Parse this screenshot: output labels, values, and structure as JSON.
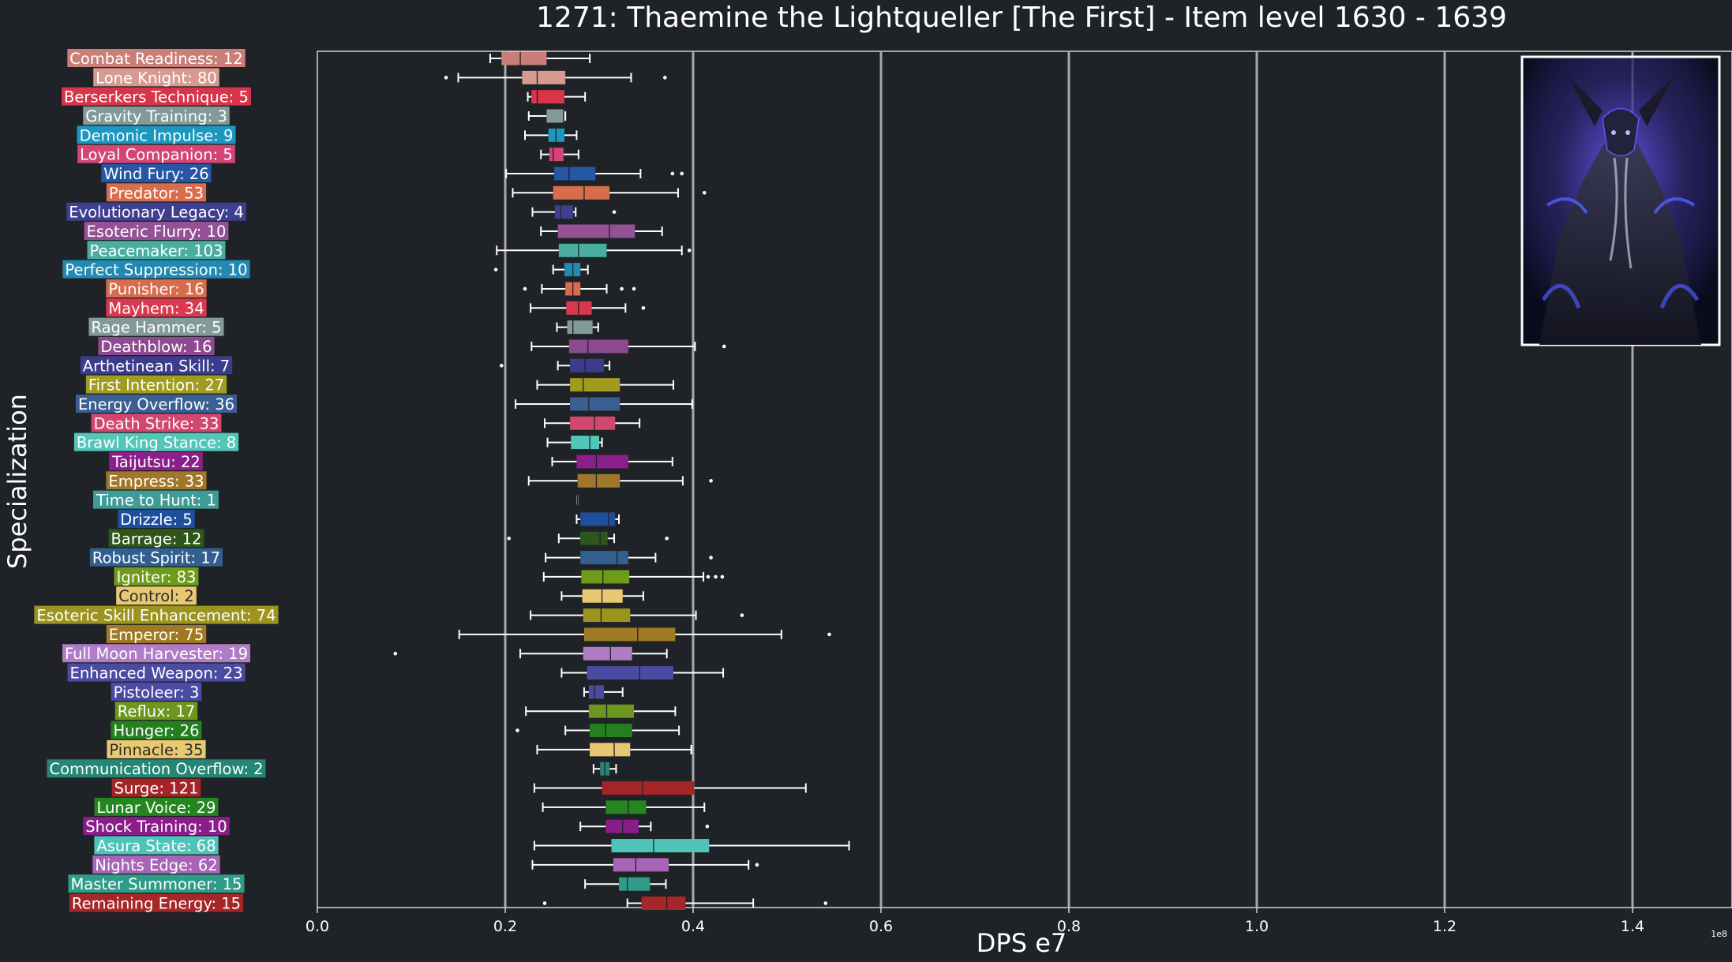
{
  "chart_data": {
    "type": "box",
    "orientation": "horizontal",
    "title": "1271: Thaemine the Lightqueller [The First] - Item level 1630 - 1639",
    "xlabel": "DPS e7",
    "ylabel": "Specialization",
    "x_offset_label": "1e8",
    "xlim": [
      0,
      1.5
    ],
    "xticks": [
      0.0,
      0.2,
      0.4,
      0.6,
      0.8,
      1.0,
      1.2,
      1.4
    ],
    "xtick_labels": [
      "0.0",
      "0.2",
      "0.4",
      "0.6",
      "0.8",
      "1.0",
      "1.2",
      "1.4"
    ],
    "grid": "vertical",
    "background": "#1f2226",
    "image_inset": {
      "name": "boss-portrait",
      "position": "top-right"
    },
    "series": [
      {
        "label": "Combat Readiness: 12",
        "color": "#c97e77",
        "whislo": 0.184,
        "q1": 0.196,
        "med": 0.216,
        "q3": 0.244,
        "whishi": 0.29,
        "fliers": []
      },
      {
        "label": "Lone Knight: 80",
        "color": "#d69a91",
        "whislo": 0.15,
        "q1": 0.218,
        "med": 0.234,
        "q3": 0.264,
        "whishi": 0.334,
        "fliers": [
          0.137,
          0.37
        ]
      },
      {
        "label": "Berserkers Technique: 5",
        "color": "#d8344a",
        "whislo": 0.224,
        "q1": 0.228,
        "med": 0.234,
        "q3": 0.263,
        "whishi": 0.285,
        "fliers": []
      },
      {
        "label": "Gravity Training: 3",
        "color": "#83999a",
        "whislo": 0.225,
        "q1": 0.244,
        "med": 0.262,
        "q3": 0.263,
        "whishi": 0.264,
        "fliers": []
      },
      {
        "label": "Demonic Impulse: 9",
        "color": "#1c97bf",
        "whislo": 0.221,
        "q1": 0.246,
        "med": 0.254,
        "q3": 0.263,
        "whishi": 0.276,
        "fliers": []
      },
      {
        "label": "Loyal Companion: 5",
        "color": "#d44576",
        "whislo": 0.238,
        "q1": 0.247,
        "med": 0.251,
        "q3": 0.262,
        "whishi": 0.278,
        "fliers": []
      },
      {
        "label": "Wind Fury: 26",
        "color": "#2557a5",
        "whislo": 0.201,
        "q1": 0.252,
        "med": 0.268,
        "q3": 0.296,
        "whishi": 0.344,
        "fliers": [
          0.378,
          0.388
        ]
      },
      {
        "label": "Predator: 53",
        "color": "#d86d4d",
        "whislo": 0.208,
        "q1": 0.251,
        "med": 0.284,
        "q3": 0.311,
        "whishi": 0.384,
        "fliers": [
          0.412
        ]
      },
      {
        "label": "Evolutionary Legacy: 4",
        "color": "#3f3f8f",
        "whislo": 0.229,
        "q1": 0.253,
        "med": 0.259,
        "q3": 0.272,
        "whishi": 0.275,
        "fliers": [
          0.316
        ]
      },
      {
        "label": "Esoteric Flurry: 10",
        "color": "#955196",
        "whislo": 0.238,
        "q1": 0.256,
        "med": 0.311,
        "q3": 0.338,
        "whishi": 0.367,
        "fliers": []
      },
      {
        "label": "Peacemaker: 103",
        "color": "#49aea0",
        "whislo": 0.191,
        "q1": 0.257,
        "med": 0.278,
        "q3": 0.308,
        "whishi": 0.388,
        "fliers": [
          0.396
        ]
      },
      {
        "label": "Perfect Suppression: 10",
        "color": "#2189b2",
        "whislo": 0.251,
        "q1": 0.263,
        "med": 0.272,
        "q3": 0.28,
        "whishi": 0.288,
        "fliers": [
          0.19
        ]
      },
      {
        "label": "Punisher: 16",
        "color": "#d66c4d",
        "whislo": 0.239,
        "q1": 0.264,
        "med": 0.272,
        "q3": 0.28,
        "whishi": 0.308,
        "fliers": [
          0.221,
          0.324,
          0.337
        ]
      },
      {
        "label": "Mayhem: 34",
        "color": "#d9384e",
        "whislo": 0.227,
        "q1": 0.265,
        "med": 0.278,
        "q3": 0.292,
        "whishi": 0.328,
        "fliers": [
          0.347
        ]
      },
      {
        "label": "Rage Hammer: 5",
        "color": "#839a9b",
        "whislo": 0.255,
        "q1": 0.266,
        "med": 0.272,
        "q3": 0.293,
        "whishi": 0.299,
        "fliers": []
      },
      {
        "label": "Deathblow: 16",
        "color": "#8e4a90",
        "whislo": 0.228,
        "q1": 0.268,
        "med": 0.288,
        "q3": 0.331,
        "whishi": 0.402,
        "fliers": [
          0.433
        ]
      },
      {
        "label": "Arthetinean Skill: 7",
        "color": "#3c3c8c",
        "whislo": 0.256,
        "q1": 0.269,
        "med": 0.285,
        "q3": 0.305,
        "whishi": 0.311,
        "fliers": [
          0.196
        ]
      },
      {
        "label": "First Intention: 27",
        "color": "#9f9c20",
        "whislo": 0.234,
        "q1": 0.269,
        "med": 0.283,
        "q3": 0.322,
        "whishi": 0.379,
        "fliers": []
      },
      {
        "label": "Energy Overflow: 36",
        "color": "#3a5f93",
        "whislo": 0.211,
        "q1": 0.269,
        "med": 0.289,
        "q3": 0.322,
        "whishi": 0.399,
        "fliers": []
      },
      {
        "label": "Death Strike: 33",
        "color": "#d2476f",
        "whislo": 0.242,
        "q1": 0.269,
        "med": 0.295,
        "q3": 0.317,
        "whishi": 0.343,
        "fliers": []
      },
      {
        "label": "Brawl King Stance: 8",
        "color": "#52c6b8",
        "whislo": 0.245,
        "q1": 0.27,
        "med": 0.29,
        "q3": 0.3,
        "whishi": 0.303,
        "fliers": []
      },
      {
        "label": "Taijutsu: 22",
        "color": "#8b1f8b",
        "whislo": 0.25,
        "q1": 0.276,
        "med": 0.297,
        "q3": 0.331,
        "whishi": 0.378,
        "fliers": []
      },
      {
        "label": "Empress: 33",
        "color": "#a07728",
        "whislo": 0.225,
        "q1": 0.277,
        "med": 0.297,
        "q3": 0.322,
        "whishi": 0.389,
        "fliers": [
          0.419
        ]
      },
      {
        "label": "Time to Hunt: 1",
        "color": "#3f9b96",
        "whislo": 0.277,
        "q1": 0.277,
        "med": 0.277,
        "q3": 0.277,
        "whishi": 0.277,
        "fliers": []
      },
      {
        "label": "Drizzle: 5",
        "color": "#1f4f9c",
        "whislo": 0.276,
        "q1": 0.28,
        "med": 0.31,
        "q3": 0.317,
        "whishi": 0.321,
        "fliers": []
      },
      {
        "label": "Barrage: 12",
        "color": "#2d561c",
        "whislo": 0.257,
        "q1": 0.28,
        "med": 0.301,
        "q3": 0.309,
        "whishi": 0.316,
        "fliers": [
          0.204,
          0.372
        ]
      },
      {
        "label": "Robust Spirit: 17",
        "color": "#315f90",
        "whislo": 0.243,
        "q1": 0.28,
        "med": 0.319,
        "q3": 0.331,
        "whishi": 0.36,
        "fliers": [
          0.419
        ]
      },
      {
        "label": "Igniter: 83",
        "color": "#6e9c1a",
        "whislo": 0.241,
        "q1": 0.281,
        "med": 0.304,
        "q3": 0.332,
        "whishi": 0.411,
        "fliers": [
          0.416,
          0.424,
          0.431
        ]
      },
      {
        "label": "Control: 2",
        "color": "#e8c870",
        "whislo": 0.26,
        "q1": 0.282,
        "med": 0.303,
        "q3": 0.325,
        "whishi": 0.347,
        "fliers": []
      },
      {
        "label": "Esoteric Skill Enhancement: 74",
        "color": "#9d9420",
        "whislo": 0.227,
        "q1": 0.283,
        "med": 0.302,
        "q3": 0.333,
        "whishi": 0.403,
        "fliers": [
          0.452
        ]
      },
      {
        "label": "Emperor: 75",
        "color": "#a07a22",
        "whislo": 0.151,
        "q1": 0.284,
        "med": 0.341,
        "q3": 0.381,
        "whishi": 0.494,
        "fliers": [
          0.545
        ]
      },
      {
        "label": "Full Moon Harvester: 19",
        "color": "#b07cc6",
        "whislo": 0.216,
        "q1": 0.283,
        "med": 0.312,
        "q3": 0.335,
        "whishi": 0.372,
        "fliers": [
          0.083
        ]
      },
      {
        "label": "Enhanced Weapon: 23",
        "color": "#4b4ba1",
        "whislo": 0.26,
        "q1": 0.287,
        "med": 0.343,
        "q3": 0.379,
        "whishi": 0.432,
        "fliers": []
      },
      {
        "label": "Pistoleer: 3",
        "color": "#4b4ba3",
        "whislo": 0.284,
        "q1": 0.289,
        "med": 0.295,
        "q3": 0.305,
        "whishi": 0.325,
        "fliers": []
      },
      {
        "label": "Reflux: 17",
        "color": "#6c961e",
        "whislo": 0.222,
        "q1": 0.289,
        "med": 0.308,
        "q3": 0.337,
        "whishi": 0.381,
        "fliers": []
      },
      {
        "label": "Hunger: 26",
        "color": "#24801f",
        "whislo": 0.264,
        "q1": 0.29,
        "med": 0.307,
        "q3": 0.335,
        "whishi": 0.385,
        "fliers": [
          0.213
        ]
      },
      {
        "label": "Pinnacle: 35",
        "color": "#e8c870",
        "whislo": 0.234,
        "q1": 0.29,
        "med": 0.316,
        "q3": 0.333,
        "whishi": 0.398,
        "fliers": []
      },
      {
        "label": "Communication Overflow: 2",
        "color": "#248675",
        "whislo": 0.294,
        "q1": 0.301,
        "med": 0.306,
        "q3": 0.311,
        "whishi": 0.318,
        "fliers": []
      },
      {
        "label": "Surge: 121",
        "color": "#a52527",
        "whislo": 0.231,
        "q1": 0.303,
        "med": 0.346,
        "q3": 0.401,
        "whishi": 0.52,
        "fliers": []
      },
      {
        "label": "Lunar Voice: 29",
        "color": "#23861f",
        "whislo": 0.24,
        "q1": 0.307,
        "med": 0.331,
        "q3": 0.35,
        "whishi": 0.412,
        "fliers": []
      },
      {
        "label": "Shock Training: 10",
        "color": "#8b1d8b",
        "whislo": 0.28,
        "q1": 0.307,
        "med": 0.325,
        "q3": 0.342,
        "whishi": 0.355,
        "fliers": [
          0.415
        ]
      },
      {
        "label": "Asura State: 68",
        "color": "#4ec4b8",
        "whislo": 0.231,
        "q1": 0.313,
        "med": 0.358,
        "q3": 0.417,
        "whishi": 0.566,
        "fliers": []
      },
      {
        "label": "Nights Edge: 62",
        "color": "#a865b8",
        "whislo": 0.229,
        "q1": 0.315,
        "med": 0.339,
        "q3": 0.374,
        "whishi": 0.459,
        "fliers": [
          0.468
        ]
      },
      {
        "label": "Master Summoner: 15",
        "color": "#2f9c8a",
        "whislo": 0.285,
        "q1": 0.321,
        "med": 0.33,
        "q3": 0.354,
        "whishi": 0.371,
        "fliers": []
      },
      {
        "label": "Remaining Energy: 15",
        "color": "#a52727",
        "whislo": 0.33,
        "q1": 0.345,
        "med": 0.372,
        "q3": 0.392,
        "whishi": 0.464,
        "fliers": [
          0.242,
          0.541
        ]
      }
    ]
  }
}
